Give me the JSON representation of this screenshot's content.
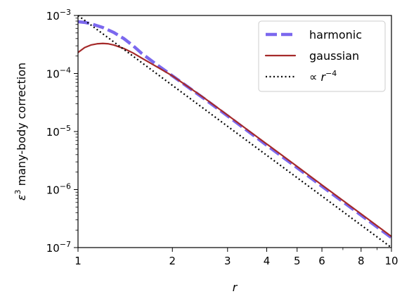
{
  "chart_data": {
    "type": "line",
    "x_scale": "log",
    "y_scale": "log",
    "xlim": [
      1,
      10
    ],
    "ylim": [
      1e-07,
      0.001
    ],
    "xlabel": "r",
    "ylabel_prefix": "ε",
    "ylabel_sup": "3",
    "ylabel_rest": " many-body correction",
    "grid": false,
    "legend_position": "top-right",
    "x_ticks": [
      {
        "value": 1,
        "label": "1"
      },
      {
        "value": 2,
        "label": "2"
      },
      {
        "value": 3,
        "label": "3"
      },
      {
        "value": 4,
        "label": "4"
      },
      {
        "value": 5,
        "label": "5"
      },
      {
        "value": 6,
        "label": "6"
      },
      {
        "value": 8,
        "label": "8"
      },
      {
        "value": 10,
        "label": "10"
      }
    ],
    "y_ticks": [
      {
        "value": 1e-07,
        "base": "10",
        "exp": "−7"
      },
      {
        "value": 1e-06,
        "base": "10",
        "exp": "−6"
      },
      {
        "value": 1e-05,
        "base": "10",
        "exp": "−5"
      },
      {
        "value": 0.0001,
        "base": "10",
        "exp": "−4"
      },
      {
        "value": 0.001,
        "base": "10",
        "exp": "−3"
      }
    ],
    "series": [
      {
        "name": "harmonic",
        "color": "#7b68ee",
        "style": "dashed",
        "x": [
          1.0,
          1.05,
          1.1,
          1.2,
          1.3,
          1.4,
          1.5,
          1.6,
          1.8,
          2.0,
          2.5,
          3.0,
          4.0,
          5.0,
          6.0,
          8.0,
          10.0
        ],
        "y": [
          0.00078,
          0.00076,
          0.00072,
          0.00062,
          0.00051,
          0.0004,
          0.0003,
          0.00022,
          0.000137,
          9.12e-05,
          3.84e-05,
          1.86e-05,
          5.8e-06,
          2.38e-06,
          1.14e-06,
          3.62e-07,
          1.48e-07
        ]
      },
      {
        "name": "gaussian",
        "color": "#a52a2a",
        "style": "solid",
        "x": [
          1.0,
          1.05,
          1.1,
          1.15,
          1.2,
          1.25,
          1.3,
          1.4,
          1.5,
          1.6,
          1.8,
          2.0,
          2.5,
          3.0,
          4.0,
          5.0,
          6.0,
          8.0,
          10.0
        ],
        "y": [
          0.00023,
          0.00028,
          0.00031,
          0.000325,
          0.00033,
          0.000325,
          0.00031,
          0.00027,
          0.000225,
          0.000183,
          0.000127,
          9.12e-05,
          3.95e-05,
          1.92e-05,
          6.1e-06,
          2.5e-06,
          1.2e-06,
          3.8e-07,
          1.55e-07
        ]
      },
      {
        "name": "∝ r",
        "name_sup": "−4",
        "color": "#000000",
        "style": "dotted",
        "x": [
          1.0,
          1.5,
          2.0,
          3.0,
          4.0,
          5.0,
          6.0,
          8.0,
          10.0
        ],
        "y": [
          0.001,
          0.000198,
          6.25e-05,
          1.23e-05,
          3.9e-06,
          1.6e-06,
          7.72e-07,
          2.44e-07,
          1e-07
        ]
      }
    ]
  }
}
